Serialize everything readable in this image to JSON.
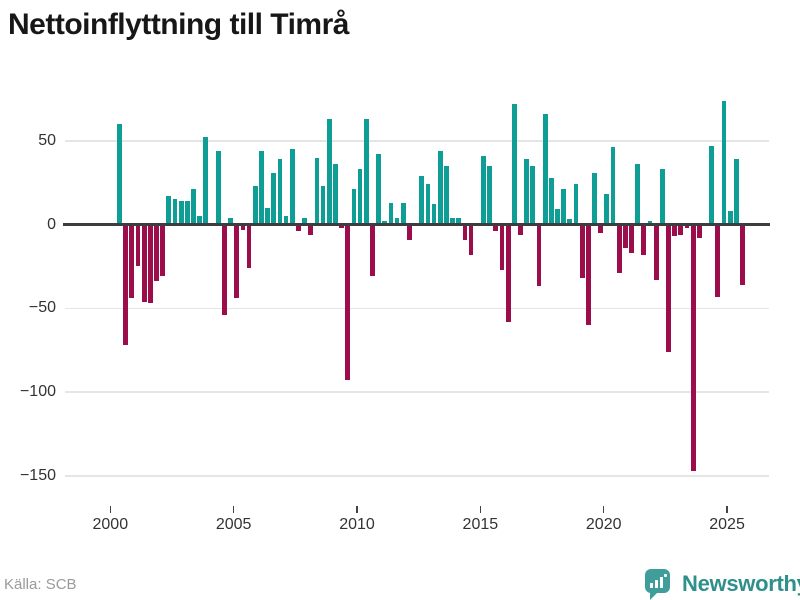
{
  "header": {
    "title": "Nettoinflyttning till Timrå"
  },
  "footer": {
    "source_label": "Källa: SCB",
    "brand_name": "Newsworthy"
  },
  "colors": {
    "positive_bar": "#0e9e96",
    "negative_bar": "#9b0e4b",
    "gridline": "#e5e5e5",
    "zero_line": "#3d3d3d",
    "axis_text": "#333333",
    "title_text": "#171717",
    "source_text": "#9a9a9a",
    "brand_teal": "#2f8f8b"
  },
  "chart_data": {
    "type": "bar",
    "title": "Nettoinflyttning till Timrå",
    "grid": true,
    "legend": "none",
    "ylim": [
      -160,
      80
    ],
    "y_ticks": [
      50,
      0,
      -50,
      -100,
      -150
    ],
    "y_tick_labels": [
      "50",
      "0",
      "−50",
      "−100",
      "−150"
    ],
    "x_tick_years": [
      2000,
      2005,
      2010,
      2015,
      2020,
      2025
    ],
    "x_tick_labels": [
      "2000",
      "2005",
      "2010",
      "2015",
      "2020",
      "2025"
    ],
    "x": [
      "2000 Q1",
      "2000 Q2",
      "2000 Q3",
      "2000 Q4",
      "2001 Q1",
      "2001 Q2",
      "2001 Q3",
      "2001 Q4",
      "2002 Q1",
      "2002 Q2",
      "2002 Q3",
      "2002 Q4",
      "2003 Q1",
      "2003 Q2",
      "2003 Q3",
      "2003 Q4",
      "2004 Q1",
      "2004 Q2",
      "2004 Q3",
      "2004 Q4",
      "2005 Q1",
      "2005 Q2",
      "2005 Q3",
      "2005 Q4",
      "2006 Q1",
      "2006 Q2",
      "2006 Q3",
      "2006 Q4",
      "2007 Q1",
      "2007 Q2",
      "2007 Q3",
      "2007 Q4",
      "2008 Q1",
      "2008 Q2",
      "2008 Q3",
      "2008 Q4",
      "2009 Q1",
      "2009 Q2",
      "2009 Q3",
      "2009 Q4",
      "2010 Q1",
      "2010 Q2",
      "2010 Q3",
      "2010 Q4",
      "2011 Q1",
      "2011 Q2",
      "2011 Q3",
      "2011 Q4",
      "2012 Q1",
      "2012 Q2",
      "2012 Q3",
      "2012 Q4",
      "2013 Q1",
      "2013 Q2",
      "2013 Q3",
      "2013 Q4",
      "2014 Q1",
      "2014 Q2",
      "2014 Q3",
      "2014 Q4",
      "2015 Q1",
      "2015 Q2",
      "2015 Q3",
      "2015 Q4",
      "2016 Q1",
      "2016 Q2",
      "2016 Q3",
      "2016 Q4",
      "2017 Q1",
      "2017 Q2",
      "2017 Q3",
      "2017 Q4",
      "2018 Q1",
      "2018 Q2",
      "2018 Q3",
      "2018 Q4",
      "2019 Q1",
      "2019 Q2",
      "2019 Q3",
      "2019 Q4",
      "2020 Q1",
      "2020 Q2",
      "2020 Q3",
      "2020 Q4",
      "2021 Q1",
      "2021 Q2",
      "2021 Q3",
      "2021 Q4",
      "2022 Q1",
      "2022 Q2",
      "2022 Q3",
      "2022 Q4",
      "2023 Q1",
      "2023 Q2",
      "2023 Q3",
      "2023 Q4",
      "2024 Q1",
      "2024 Q2",
      "2024 Q3",
      "2024 Q4",
      "2025 Q1",
      "2025 Q2",
      "2025 Q3"
    ],
    "values": [
      0,
      60,
      -72,
      -44,
      -25,
      -46,
      -47,
      -34,
      -31,
      17,
      15,
      14,
      14,
      21,
      5,
      52,
      0,
      44,
      -54,
      4,
      -44,
      -3,
      -26,
      23,
      44,
      10,
      31,
      39,
      5,
      45,
      -4,
      4,
      -6,
      40,
      23,
      63,
      36,
      -2,
      -93,
      21,
      33,
      63,
      -31,
      42,
      2,
      13,
      4,
      13,
      -9,
      0,
      29,
      24,
      12,
      44,
      35,
      4,
      4,
      -9,
      -18,
      0,
      41,
      35,
      -4,
      -27,
      -58,
      72,
      -6,
      39,
      35,
      -37,
      66,
      28,
      9,
      21,
      3,
      24,
      -32,
      -60,
      31,
      -5,
      18,
      46,
      -29,
      -14,
      -17,
      36,
      -18,
      2,
      -33,
      33,
      -76,
      -7,
      -6,
      -2,
      -147,
      -8,
      0,
      47,
      -43,
      74,
      8,
      39,
      -36
    ]
  }
}
